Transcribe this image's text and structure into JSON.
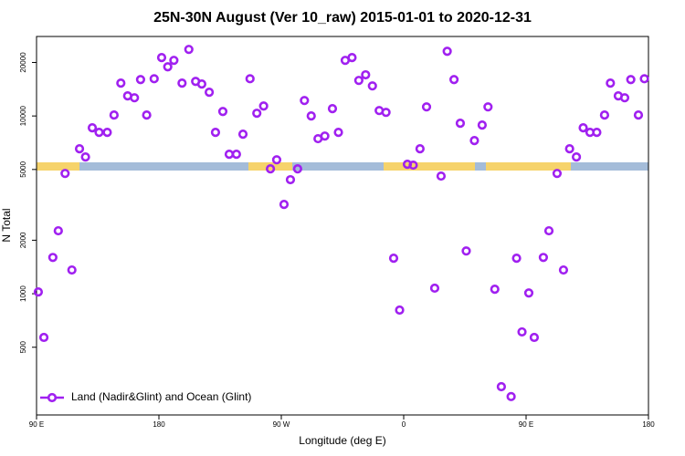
{
  "chart_data": {
    "type": "scatter",
    "title": "25N-30N August (Ver 10_raw)   2015-01-01 to 2020-12-31",
    "xlabel": "Longitude (deg E)",
    "ylabel": "N Total",
    "x": [
      91.3,
      95.4,
      102,
      106,
      111,
      116,
      121.6,
      126,
      131,
      136,
      142,
      147,
      152,
      157,
      162,
      166.5,
      171,
      176.5,
      182,
      186.5,
      191,
      197,
      202,
      207,
      211.5,
      217,
      221.6,
      227,
      231.7,
      237,
      241.8,
      247,
      252,
      257,
      262,
      266.6,
      272,
      276.7,
      282,
      287,
      292,
      297,
      302,
      307.6,
      312,
      317,
      322,
      327,
      332,
      337,
      342,
      347,
      352.6,
      357,
      362.7,
      367,
      372,
      376.8,
      382.8,
      387.5,
      392,
      397,
      401.6,
      406,
      412,
      417.7,
      422,
      427,
      431.8,
      439,
      443,
      447,
      452,
      456,
      462.7,
      466.8,
      472.8,
      477.5,
      482,
      487,
      492,
      497,
      502,
      507.7,
      512,
      517.8,
      522.5,
      527,
      532.6,
      537
    ],
    "series": [
      {
        "name": "Land (Nadir&Glint) and Ocean (Glint)",
        "color": "#a020f0",
        "values": [
          1023,
          568,
          1600,
          2260,
          4750,
          1360,
          6540,
          5880,
          8580,
          8090,
          8090,
          10120,
          15300,
          12970,
          12660,
          16030,
          10120,
          16200,
          21300,
          18900,
          20550,
          15300,
          23680,
          15650,
          15120,
          13600,
          8090,
          10600,
          6090,
          6090,
          7900,
          16200,
          10360,
          11380,
          5040,
          5670,
          3180,
          4380,
          5040,
          12220,
          10000,
          7450,
          7710,
          11000,
          8090,
          20550,
          21300,
          15850,
          17040,
          14760,
          10730,
          10480,
          1585,
          809,
          5350,
          5290,
          6540,
          11250,
          1075,
          4590,
          23100,
          16030,
          9100,
          1740,
          7270,
          8890,
          11250,
          1060,
          300,
          264,
          1585,
          610,
          1010,
          568,
          1600,
          2260,
          4750,
          1360,
          6540,
          5880,
          8580,
          8090,
          8090,
          10120,
          15300,
          12970,
          12660,
          16030,
          10120,
          16200
        ]
      }
    ],
    "xlim": [
      90,
      540
    ],
    "xticks": [
      {
        "value": 90,
        "label": "90 E"
      },
      {
        "value": 180,
        "label": "180"
      },
      {
        "value": 270,
        "label": "90 W"
      },
      {
        "value": 360,
        "label": "0"
      },
      {
        "value": 450,
        "label": "90 E"
      },
      {
        "value": 540,
        "label": "180"
      }
    ],
    "ylim": [
      208,
      28000
    ],
    "yticks": [
      500,
      1000,
      2000,
      5000,
      10000,
      20000
    ],
    "ylog": true,
    "legend": "lower left"
  }
}
